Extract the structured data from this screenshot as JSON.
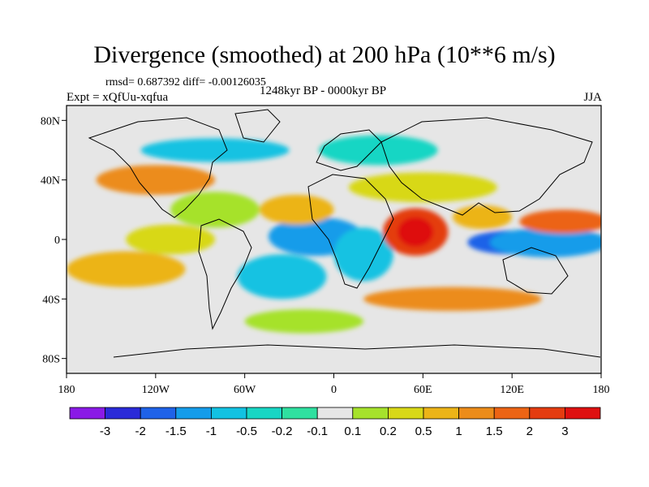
{
  "title": "Divergence (smoothed) at 200 hPa (10**6 m/s)",
  "stats": "rmsd= 0.687392 diff= -0.00126035",
  "experiment": "Expt = xQfUu-xqfua",
  "period": "1248kyr BP - 0000kyr BP",
  "season": "JJA",
  "lat_labels": [
    "80N",
    "40N",
    "0",
    "40S",
    "80S"
  ],
  "lon_labels": [
    "180",
    "120W",
    "60W",
    "0",
    "60E",
    "120E",
    "180"
  ],
  "colorbar": {
    "colors": [
      "#8a1ae6",
      "#2a2ad8",
      "#1f62e8",
      "#149cea",
      "#12c2e2",
      "#18d6c4",
      "#2fe0a0",
      "#e6e6e6",
      "#a6e22c",
      "#d8d818",
      "#ecb418",
      "#ec8c1a",
      "#ec6414",
      "#e43c10",
      "#de1010"
    ],
    "labels": [
      "-3",
      "-2",
      "-1.5",
      "-1",
      "-0.5",
      "-0.2",
      "-0.1",
      "0.1",
      "0.2",
      "0.5",
      "1",
      "1.5",
      "2",
      "3"
    ]
  },
  "field_blobs": [
    {
      "lon": -12,
      "lat": 2,
      "rx": 22,
      "ry": 8,
      "c": 1
    },
    {
      "lon": -12,
      "lat": 2,
      "rx": 32,
      "ry": 13,
      "c": 3
    },
    {
      "lon": 28,
      "lat": -10,
      "rx": 12,
      "ry": 14,
      "c": 2
    },
    {
      "lon": 20,
      "lat": -10,
      "rx": 20,
      "ry": 18,
      "c": 4
    },
    {
      "lon": 55,
      "lat": 5,
      "rx": 22,
      "ry": 16,
      "c": 13
    },
    {
      "lon": 55,
      "lat": 5,
      "rx": 12,
      "ry": 10,
      "c": 14
    },
    {
      "lon": 120,
      "lat": -2,
      "rx": 30,
      "ry": 8,
      "c": 2
    },
    {
      "lon": 145,
      "lat": -2,
      "rx": 40,
      "ry": 10,
      "c": 3
    },
    {
      "lon": 155,
      "lat": 12,
      "rx": 30,
      "ry": 8,
      "c": 12
    },
    {
      "lon": 100,
      "lat": 15,
      "rx": 20,
      "ry": 8,
      "c": 10
    },
    {
      "lon": -140,
      "lat": -20,
      "rx": 40,
      "ry": 12,
      "c": 10
    },
    {
      "lon": -110,
      "lat": 0,
      "rx": 30,
      "ry": 10,
      "c": 9
    },
    {
      "lon": -35,
      "lat": -25,
      "rx": 30,
      "ry": 15,
      "c": 4
    },
    {
      "lon": -25,
      "lat": 20,
      "rx": 25,
      "ry": 10,
      "c": 10
    },
    {
      "lon": 60,
      "lat": 35,
      "rx": 50,
      "ry": 10,
      "c": 9
    },
    {
      "lon": -80,
      "lat": 60,
      "rx": 50,
      "ry": 8,
      "c": 4
    },
    {
      "lon": 80,
      "lat": -40,
      "rx": 60,
      "ry": 8,
      "c": 11
    },
    {
      "lon": -120,
      "lat": 40,
      "rx": 40,
      "ry": 10,
      "c": 11
    },
    {
      "lon": -80,
      "lat": 20,
      "rx": 30,
      "ry": 12,
      "c": 8
    },
    {
      "lon": 30,
      "lat": 60,
      "rx": 40,
      "ry": 10,
      "c": 5
    },
    {
      "lon": -20,
      "lat": -55,
      "rx": 40,
      "ry": 8,
      "c": 8
    }
  ]
}
